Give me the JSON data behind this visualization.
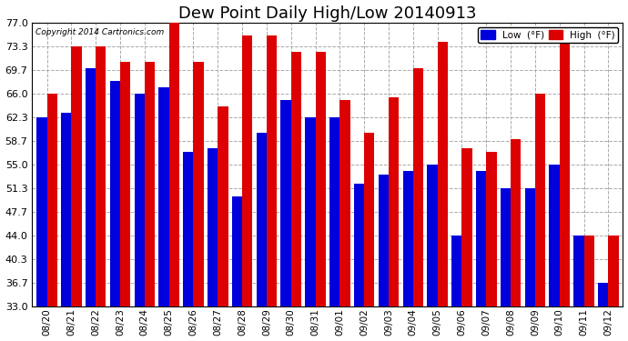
{
  "title": "Dew Point Daily High/Low 20140913",
  "copyright": "Copyright 2014 Cartronics.com",
  "dates": [
    "08/20",
    "08/21",
    "08/22",
    "08/23",
    "08/24",
    "08/25",
    "08/26",
    "08/27",
    "08/28",
    "08/29",
    "08/30",
    "08/31",
    "09/01",
    "09/02",
    "09/03",
    "09/04",
    "09/05",
    "09/06",
    "09/07",
    "09/08",
    "09/09",
    "09/10",
    "09/11",
    "09/12"
  ],
  "low_values": [
    62.3,
    63.0,
    70.0,
    68.0,
    66.0,
    67.0,
    57.0,
    57.5,
    50.0,
    60.0,
    65.0,
    62.3,
    62.3,
    52.0,
    53.5,
    54.0,
    55.0,
    44.0,
    54.0,
    51.3,
    51.3,
    55.0,
    44.0,
    36.7
  ],
  "high_values": [
    66.0,
    73.3,
    73.3,
    71.0,
    71.0,
    77.0,
    71.0,
    64.0,
    75.0,
    75.0,
    72.5,
    72.5,
    65.0,
    60.0,
    65.5,
    70.0,
    74.0,
    57.5,
    57.0,
    59.0,
    66.0,
    74.0,
    44.0,
    44.0
  ],
  "low_color": "#0000dd",
  "high_color": "#dd0000",
  "bg_color": "#ffffff",
  "plot_bg_color": "#ffffff",
  "grid_color": "#aaaaaa",
  "yticks": [
    33.0,
    36.7,
    40.3,
    44.0,
    47.7,
    51.3,
    55.0,
    58.7,
    62.3,
    66.0,
    69.7,
    73.3,
    77.0
  ],
  "ylim": [
    33.0,
    77.0
  ],
  "ymin": 33.0,
  "title_fontsize": 13,
  "legend_low_label": "Low  (°F)",
  "legend_high_label": "High  (°F)"
}
